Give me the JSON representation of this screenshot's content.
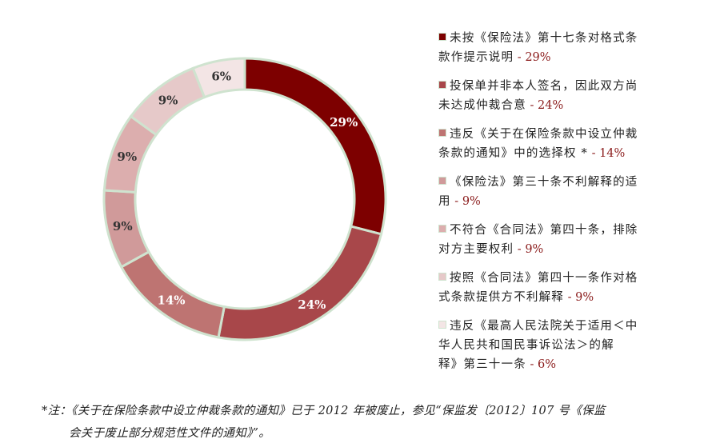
{
  "chart_data": {
    "type": "pie",
    "style": "donut",
    "categories": [
      "未按《保险法》第十七条对格式条款作提示说明",
      "投保单并非本人签名，因此双方尚未达成仲裁合意",
      "违反《关于在保险条款中设立仲裁条款的通知》中的选择权 *",
      "《保险法》第三十条不利解释的适用",
      "不符合《合同法》第四十条，排除对方主要权利",
      "按照《合同法》第四十一条作对格式条款提供方不利解释",
      "违反《最高人民法院关于适用＜中华人民共和国民事诉讼法＞的解释》第三十一条"
    ],
    "values": [
      29,
      24,
      14,
      9,
      9,
      9,
      6
    ],
    "slice_labels": [
      "29%",
      "24%",
      "14%",
      "9%",
      "9%",
      "9%",
      "6%"
    ],
    "colors": [
      "#7d0000",
      "#a8474a",
      "#be7472",
      "#d09a9a",
      "#dcaeae",
      "#e6c9c9",
      "#f3e5e5"
    ],
    "border_color": "#cfe3cf",
    "label_colors": [
      "#ffffff",
      "#ffffff",
      "#ffffff",
      "#333333",
      "#333333",
      "#333333",
      "#333333"
    ],
    "legend_placement": "right"
  },
  "legend": {
    "items": [
      {
        "lines": [
          "未按《保险法》第十七条对格式条",
          "款作提示说明"
        ],
        "pct": " - 29%"
      },
      {
        "lines": [
          "投保单并非本人签名，因此双方尚",
          "未达成仲裁合意"
        ],
        "pct": " - 24%"
      },
      {
        "lines": [
          "违反《关于在保险条款中设立仲裁",
          "条款的通知》中的选择权 *"
        ],
        "pct": " - 14%"
      },
      {
        "lines": [
          "《保险法》第三十条不利解释的适",
          "用"
        ],
        "pct": " - 9%"
      },
      {
        "lines": [
          "不符合《合同法》第四十条，排除",
          "对方主要权利"
        ],
        "pct": " - 9%"
      },
      {
        "lines": [
          "按照《合同法》第四十一条作对格",
          "式条款提供方不利解释"
        ],
        "pct": " - 9%"
      },
      {
        "lines": [
          "违反《最高人民法院关于适用＜中",
          "华人民共和国民事诉讼法＞的解",
          "释》第三十一条"
        ],
        "pct": " - 6%"
      }
    ]
  },
  "footnote": {
    "line1": "*注：《关于在保险条款中设立仲裁条款的通知》已于 2012 年被废止，参见“保监发〔2012〕107 号《保监",
    "line2": "会关于废止部分规范性文件的通知》”。"
  }
}
